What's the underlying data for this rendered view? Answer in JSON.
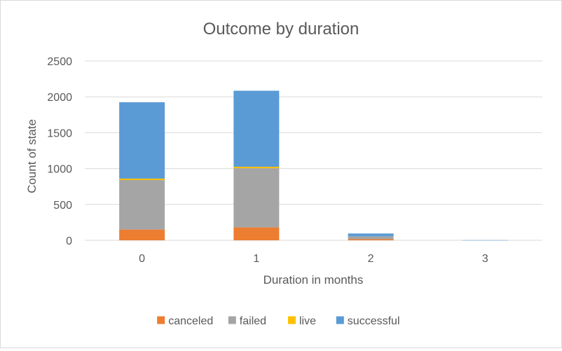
{
  "chart_data": {
    "type": "bar",
    "stacked": true,
    "title": "Outcome by duration",
    "xlabel": "Duration in months",
    "ylabel": "Count of state",
    "categories": [
      "0",
      "1",
      "2",
      "3"
    ],
    "ylim": [
      0,
      2500
    ],
    "yticks": [
      0,
      500,
      1000,
      1500,
      2000,
      2500
    ],
    "grid": true,
    "legend_position": "bottom",
    "series": [
      {
        "name": "canceled",
        "color": "#ED7D31",
        "values": [
          150,
          180,
          15,
          0
        ]
      },
      {
        "name": "failed",
        "color": "#A5A5A5",
        "values": [
          690,
          825,
          40,
          0
        ]
      },
      {
        "name": "live",
        "color": "#FFC000",
        "values": [
          20,
          20,
          0,
          0
        ]
      },
      {
        "name": "successful",
        "color": "#5B9BD5",
        "values": [
          1065,
          1060,
          40,
          2
        ]
      }
    ]
  }
}
